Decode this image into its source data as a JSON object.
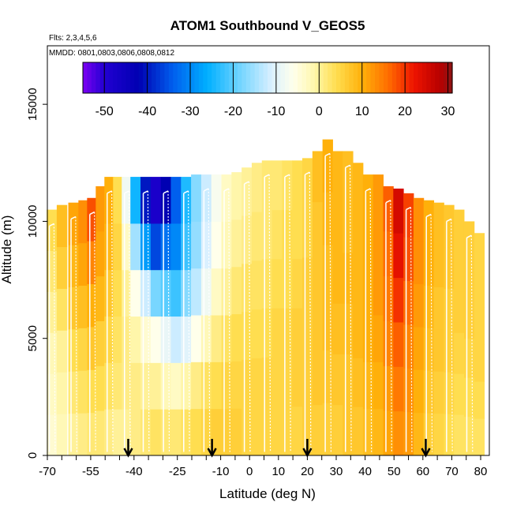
{
  "chart_data": {
    "type": "heatmap",
    "title": "ATOM1 Southbound V_GEOS5",
    "subtitle_flights": "Flts: 2,3,4,5,6",
    "subtitle_dates": "MMDD: 0801,0803,0806,0808,0812",
    "xlabel": "Latitude (deg N)",
    "ylabel": "Altitude (m)",
    "xlim": [
      -70,
      83
    ],
    "ylim": [
      0,
      17500
    ],
    "x_ticks": [
      -70,
      -55,
      -40,
      -25,
      -10,
      0,
      10,
      20,
      30,
      40,
      50,
      60,
      70,
      80
    ],
    "x_tick_labels": [
      "-70",
      "-55",
      "-40",
      "-25",
      "-10",
      "0",
      "10",
      "20",
      "30",
      "40",
      "50",
      "60",
      "70",
      "80"
    ],
    "x_minor_ticks": [
      -65,
      -60,
      -50,
      -45,
      -35,
      -30,
      -20,
      -15,
      -5,
      5,
      15,
      25,
      35,
      45,
      55,
      65,
      75
    ],
    "y_ticks": [
      0,
      5000,
      10000,
      15000
    ],
    "y_tick_labels": [
      "0",
      "5000",
      "10000",
      "15000"
    ],
    "colorbar": {
      "range": [
        -55,
        31
      ],
      "ticks": [
        -50,
        -40,
        -30,
        -20,
        -10,
        0,
        10,
        20,
        30
      ],
      "tick_labels": [
        "-50",
        "-40",
        "-30",
        "-20",
        "-10",
        "0",
        "10",
        "20",
        "30"
      ]
    },
    "arrow_markers_lat": [
      -42,
      -13,
      20,
      61
    ],
    "columns": [
      {
        "lat": -68.5,
        "top": 10500,
        "v": [
          -4,
          -3,
          -2,
          0,
          2,
          4
        ]
      },
      {
        "lat": -65.0,
        "top": 10700,
        "v": [
          -2,
          -1,
          0,
          3,
          6,
          8
        ]
      },
      {
        "lat": -61.0,
        "top": 10800,
        "v": [
          0,
          2,
          4,
          7,
          9,
          11
        ]
      },
      {
        "lat": -57.5,
        "top": 10900,
        "v": [
          1,
          3,
          5,
          8,
          11,
          13
        ]
      },
      {
        "lat": -54.5,
        "top": 11000,
        "v": [
          2,
          4,
          7,
          10,
          14,
          18
        ]
      },
      {
        "lat": -51.5,
        "top": 11500,
        "v": [
          2,
          4,
          6,
          9,
          11,
          12
        ]
      },
      {
        "lat": -48.5,
        "top": 11900,
        "v": [
          1,
          3,
          5,
          7,
          9,
          10
        ]
      },
      {
        "lat": -45.5,
        "top": 11900,
        "v": [
          0,
          2,
          3,
          4,
          5,
          4
        ]
      },
      {
        "lat": -42.5,
        "top": 11900,
        "v": [
          0,
          1,
          1,
          0,
          -3,
          -8
        ]
      },
      {
        "lat": -39.5,
        "top": 11900,
        "v": [
          1,
          1,
          -1,
          -6,
          -15,
          -25
        ]
      },
      {
        "lat": -36.0,
        "top": 11900,
        "v": [
          2,
          0,
          -4,
          -12,
          -28,
          -40
        ]
      },
      {
        "lat": -32.5,
        "top": 11900,
        "v": [
          3,
          0,
          -6,
          -18,
          -36,
          -48
        ]
      },
      {
        "lat": -29.0,
        "top": 11900,
        "v": [
          2,
          -2,
          -9,
          -20,
          -32,
          -42
        ]
      },
      {
        "lat": -25.5,
        "top": 11900,
        "v": [
          2,
          -3,
          -12,
          -22,
          -30,
          -34
        ]
      },
      {
        "lat": -22.0,
        "top": 11900,
        "v": [
          3,
          -1,
          -10,
          -17,
          -22,
          -24
        ]
      },
      {
        "lat": -18.5,
        "top": 12000,
        "v": [
          4,
          1,
          -6,
          -13,
          -16,
          -17
        ]
      },
      {
        "lat": -15.0,
        "top": 12000,
        "v": [
          5,
          3,
          -2,
          -8,
          -11,
          -12
        ]
      },
      {
        "lat": -11.5,
        "top": 12000,
        "v": [
          6,
          4,
          1,
          -3,
          -6,
          -7
        ]
      },
      {
        "lat": -8.0,
        "top": 12000,
        "v": [
          6,
          5,
          3,
          0,
          -2,
          -3
        ]
      },
      {
        "lat": -4.5,
        "top": 12100,
        "v": [
          6,
          5,
          4,
          2,
          0,
          -1
        ]
      },
      {
        "lat": -1.0,
        "top": 12300,
        "v": [
          5,
          5,
          4,
          3,
          1,
          0
        ]
      },
      {
        "lat": 2.5,
        "top": 12500,
        "v": [
          5,
          5,
          4,
          3,
          2,
          1
        ]
      },
      {
        "lat": 6.0,
        "top": 12600,
        "v": [
          5,
          5,
          4,
          3,
          2,
          2
        ]
      },
      {
        "lat": 9.5,
        "top": 12600,
        "v": [
          5,
          5,
          5,
          4,
          3,
          2
        ]
      },
      {
        "lat": 13.0,
        "top": 12600,
        "v": [
          5,
          5,
          5,
          4,
          4,
          3
        ]
      },
      {
        "lat": 16.5,
        "top": 12600,
        "v": [
          5,
          6,
          6,
          5,
          4,
          4
        ]
      },
      {
        "lat": 20.0,
        "top": 12700,
        "v": [
          6,
          6,
          6,
          6,
          5,
          5
        ]
      },
      {
        "lat": 23.5,
        "top": 13000,
        "v": [
          6,
          7,
          7,
          7,
          7,
          8
        ]
      },
      {
        "lat": 27.0,
        "top": 13500,
        "v": [
          6,
          7,
          8,
          8,
          9,
          10
        ]
      },
      {
        "lat": 30.5,
        "top": 13000,
        "v": [
          6,
          7,
          8,
          9,
          9,
          9
        ]
      },
      {
        "lat": 34.0,
        "top": 13000,
        "v": [
          7,
          7,
          8,
          9,
          8,
          8
        ]
      },
      {
        "lat": 37.5,
        "top": 12500,
        "v": [
          7,
          8,
          9,
          9,
          9,
          9
        ]
      },
      {
        "lat": 41.0,
        "top": 12000,
        "v": [
          8,
          9,
          10,
          10,
          10,
          10
        ]
      },
      {
        "lat": 44.5,
        "top": 12000,
        "v": [
          9,
          10,
          11,
          12,
          12,
          12
        ]
      },
      {
        "lat": 48.0,
        "top": 11500,
        "v": [
          11,
          12,
          14,
          15,
          16,
          17
        ]
      },
      {
        "lat": 51.5,
        "top": 11400,
        "v": [
          13,
          15,
          17,
          20,
          23,
          25
        ]
      },
      {
        "lat": 55.0,
        "top": 11200,
        "v": [
          12,
          13,
          14,
          16,
          18,
          19
        ]
      },
      {
        "lat": 58.5,
        "top": 11000,
        "v": [
          9,
          10,
          11,
          12,
          13,
          13
        ]
      },
      {
        "lat": 62.0,
        "top": 10900,
        "v": [
          6,
          7,
          8,
          9,
          10,
          10
        ]
      },
      {
        "lat": 65.5,
        "top": 10800,
        "v": [
          5,
          6,
          7,
          7,
          8,
          8
        ]
      },
      {
        "lat": 69.0,
        "top": 10700,
        "v": [
          4,
          5,
          6,
          6,
          7,
          7
        ]
      },
      {
        "lat": 72.5,
        "top": 10500,
        "v": [
          3,
          4,
          5,
          6,
          6,
          6
        ]
      },
      {
        "lat": 76.0,
        "top": 10000,
        "v": [
          3,
          4,
          5,
          6,
          6,
          6
        ]
      },
      {
        "lat": 79.5,
        "top": 9500,
        "v": [
          3,
          4,
          5,
          5,
          5,
          5
        ]
      }
    ]
  }
}
